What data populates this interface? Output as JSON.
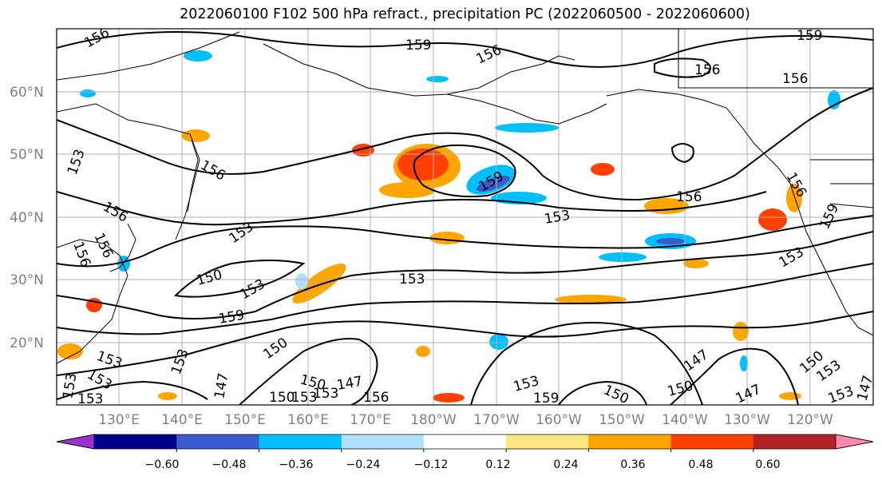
{
  "title": "2022060100 F102 500 hPa refract., precipitation PC (2022060500 - 2022060600)",
  "map": {
    "lat_labels": [
      "60°N",
      "50°N",
      "40°N",
      "30°N",
      "20°N"
    ],
    "lon_labels": [
      "130°E",
      "140°E",
      "150°E",
      "160°E",
      "170°E",
      "180°W",
      "170°W",
      "160°W",
      "150°W",
      "140°W",
      "130°W",
      "120°W"
    ],
    "contour_labels": [
      "156",
      "159",
      "156",
      "156",
      "159",
      "156",
      "156",
      "153",
      "156",
      "156",
      "153",
      "153",
      "156",
      "153",
      "159",
      "153",
      "156",
      "159",
      "153",
      "150",
      "153",
      "159",
      "153",
      "150",
      "153",
      "150",
      "147",
      "147",
      "153",
      "150",
      "153",
      "147",
      "150",
      "150",
      "153",
      "159",
      "156",
      "153",
      "150",
      "147",
      "153",
      "153",
      "147",
      "156",
      "153"
    ]
  },
  "colorbar": {
    "ticks": [
      "−0.60",
      "−0.48",
      "−0.36",
      "−0.24",
      "−0.12",
      "0.12",
      "0.24",
      "0.36",
      "0.48",
      "0.60"
    ],
    "colors": [
      "#9932cc",
      "#00008b",
      "#3a5bcd",
      "#00bfff",
      "#b0e0ff",
      "#ffffff",
      "#ffe680",
      "#ffa500",
      "#ff4000",
      "#b22222",
      "#ff88b0"
    ]
  }
}
